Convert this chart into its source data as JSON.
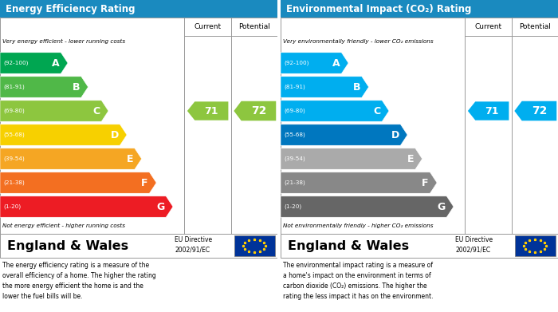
{
  "title_epc": "Energy Efficiency Rating",
  "title_co2": "Environmental Impact (CO₂) Rating",
  "header_bg": "#1a8abf",
  "bands_epc": [
    {
      "label": "A",
      "range": "(92-100)",
      "wf": 0.33,
      "color": "#00a651"
    },
    {
      "label": "B",
      "range": "(81-91)",
      "wf": 0.44,
      "color": "#50b848"
    },
    {
      "label": "C",
      "range": "(69-80)",
      "wf": 0.55,
      "color": "#8dc63f"
    },
    {
      "label": "D",
      "range": "(55-68)",
      "wf": 0.65,
      "color": "#f7d000"
    },
    {
      "label": "E",
      "range": "(39-54)",
      "wf": 0.73,
      "color": "#f5a623"
    },
    {
      "label": "F",
      "range": "(21-38)",
      "wf": 0.81,
      "color": "#f36f21"
    },
    {
      "label": "G",
      "range": "(1-20)",
      "wf": 0.9,
      "color": "#ed1c24"
    }
  ],
  "bands_co2": [
    {
      "label": "A",
      "range": "(92-100)",
      "wf": 0.33,
      "color": "#00aeef"
    },
    {
      "label": "B",
      "range": "(81-91)",
      "wf": 0.44,
      "color": "#00aeef"
    },
    {
      "label": "C",
      "range": "(69-80)",
      "wf": 0.55,
      "color": "#00aeef"
    },
    {
      "label": "D",
      "range": "(55-68)",
      "wf": 0.65,
      "color": "#0077bf"
    },
    {
      "label": "E",
      "range": "(39-54)",
      "wf": 0.73,
      "color": "#aaaaaa"
    },
    {
      "label": "F",
      "range": "(21-38)",
      "wf": 0.81,
      "color": "#888888"
    },
    {
      "label": "G",
      "range": "(1-20)",
      "wf": 0.9,
      "color": "#666666"
    }
  ],
  "current_value": 71,
  "potential_value": 72,
  "current_band_idx": 2,
  "arrow_color_epc": "#8dc63f",
  "arrow_color_co2": "#00aeef",
  "top_note_epc": "Very energy efficient - lower running costs",
  "bottom_note_epc": "Not energy efficient - higher running costs",
  "top_note_co2": "Very environmentally friendly - lower CO₂ emissions",
  "bottom_note_co2": "Not environmentally friendly - higher CO₂ emissions",
  "footer_text": "England & Wales",
  "eu_directive": "EU Directive\n2002/91/EC",
  "note_epc": "The energy efficiency rating is a measure of the\noverall efficiency of a home. The higher the rating\nthe more energy efficient the home is and the\nlower the fuel bills will be.",
  "note_co2": "The environmental impact rating is a measure of\na home's impact on the environment in terms of\ncarbon dioxide (CO₂) emissions. The higher the\nrating the less impact it has on the environment."
}
